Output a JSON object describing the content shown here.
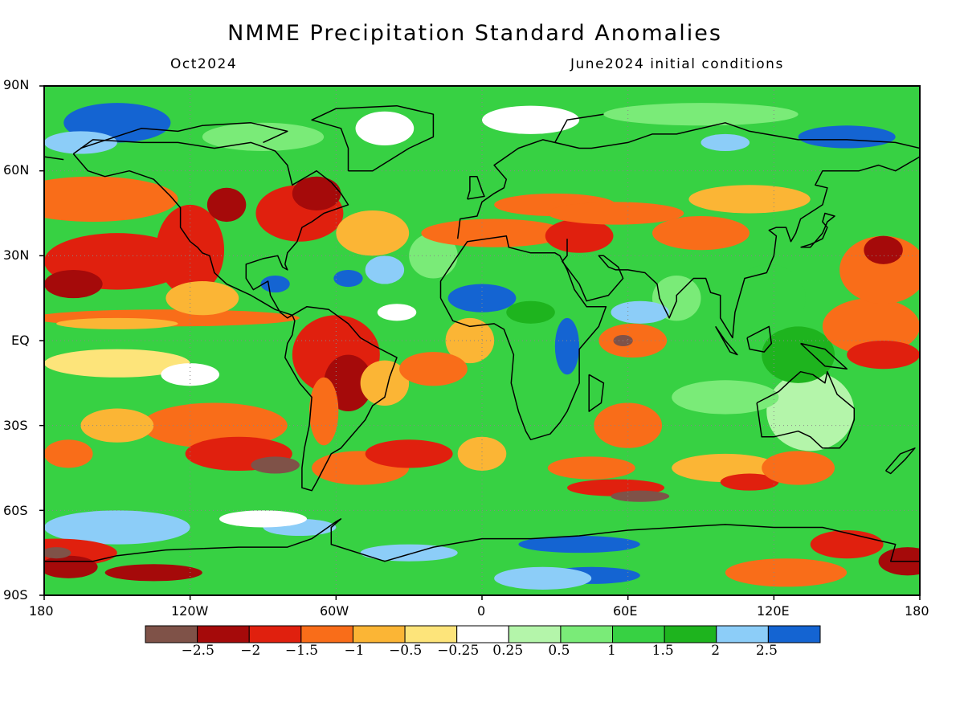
{
  "header": {
    "title": "NMME Precipitation Standard Anomalies",
    "valid_label": "Oct2024",
    "init_label": "June2024 initial conditions"
  },
  "axes": {
    "lat_labels": [
      "90N",
      "60N",
      "30N",
      "EQ",
      "30S",
      "60S",
      "90S"
    ],
    "lon_labels": [
      "180",
      "120W",
      "60W",
      "0",
      "60E",
      "120E",
      "180"
    ]
  },
  "legend": {
    "colors": [
      "#7f5248",
      "#a50a0a",
      "#e0200e",
      "#f96d19",
      "#fbb535",
      "#fde47a",
      "#ffffff",
      "#b4f5aa",
      "#7aeb78",
      "#37d143",
      "#1eb41e",
      "#8ccdf8",
      "#1464d2"
    ],
    "tick_labels": [
      "-2.5",
      "-2",
      "-1.5",
      "-1",
      "-0.5",
      "-0.25",
      "0.25",
      "0.5",
      "1",
      "1.5",
      "2",
      "2.5"
    ]
  },
  "map": {
    "projection": "cylindrical-equidistant",
    "lon_range": [
      -180,
      180
    ],
    "lat_range": [
      -90,
      90
    ],
    "field": "precipitation standard anomaly",
    "coastlines": true,
    "gridlines": "dotted"
  }
}
